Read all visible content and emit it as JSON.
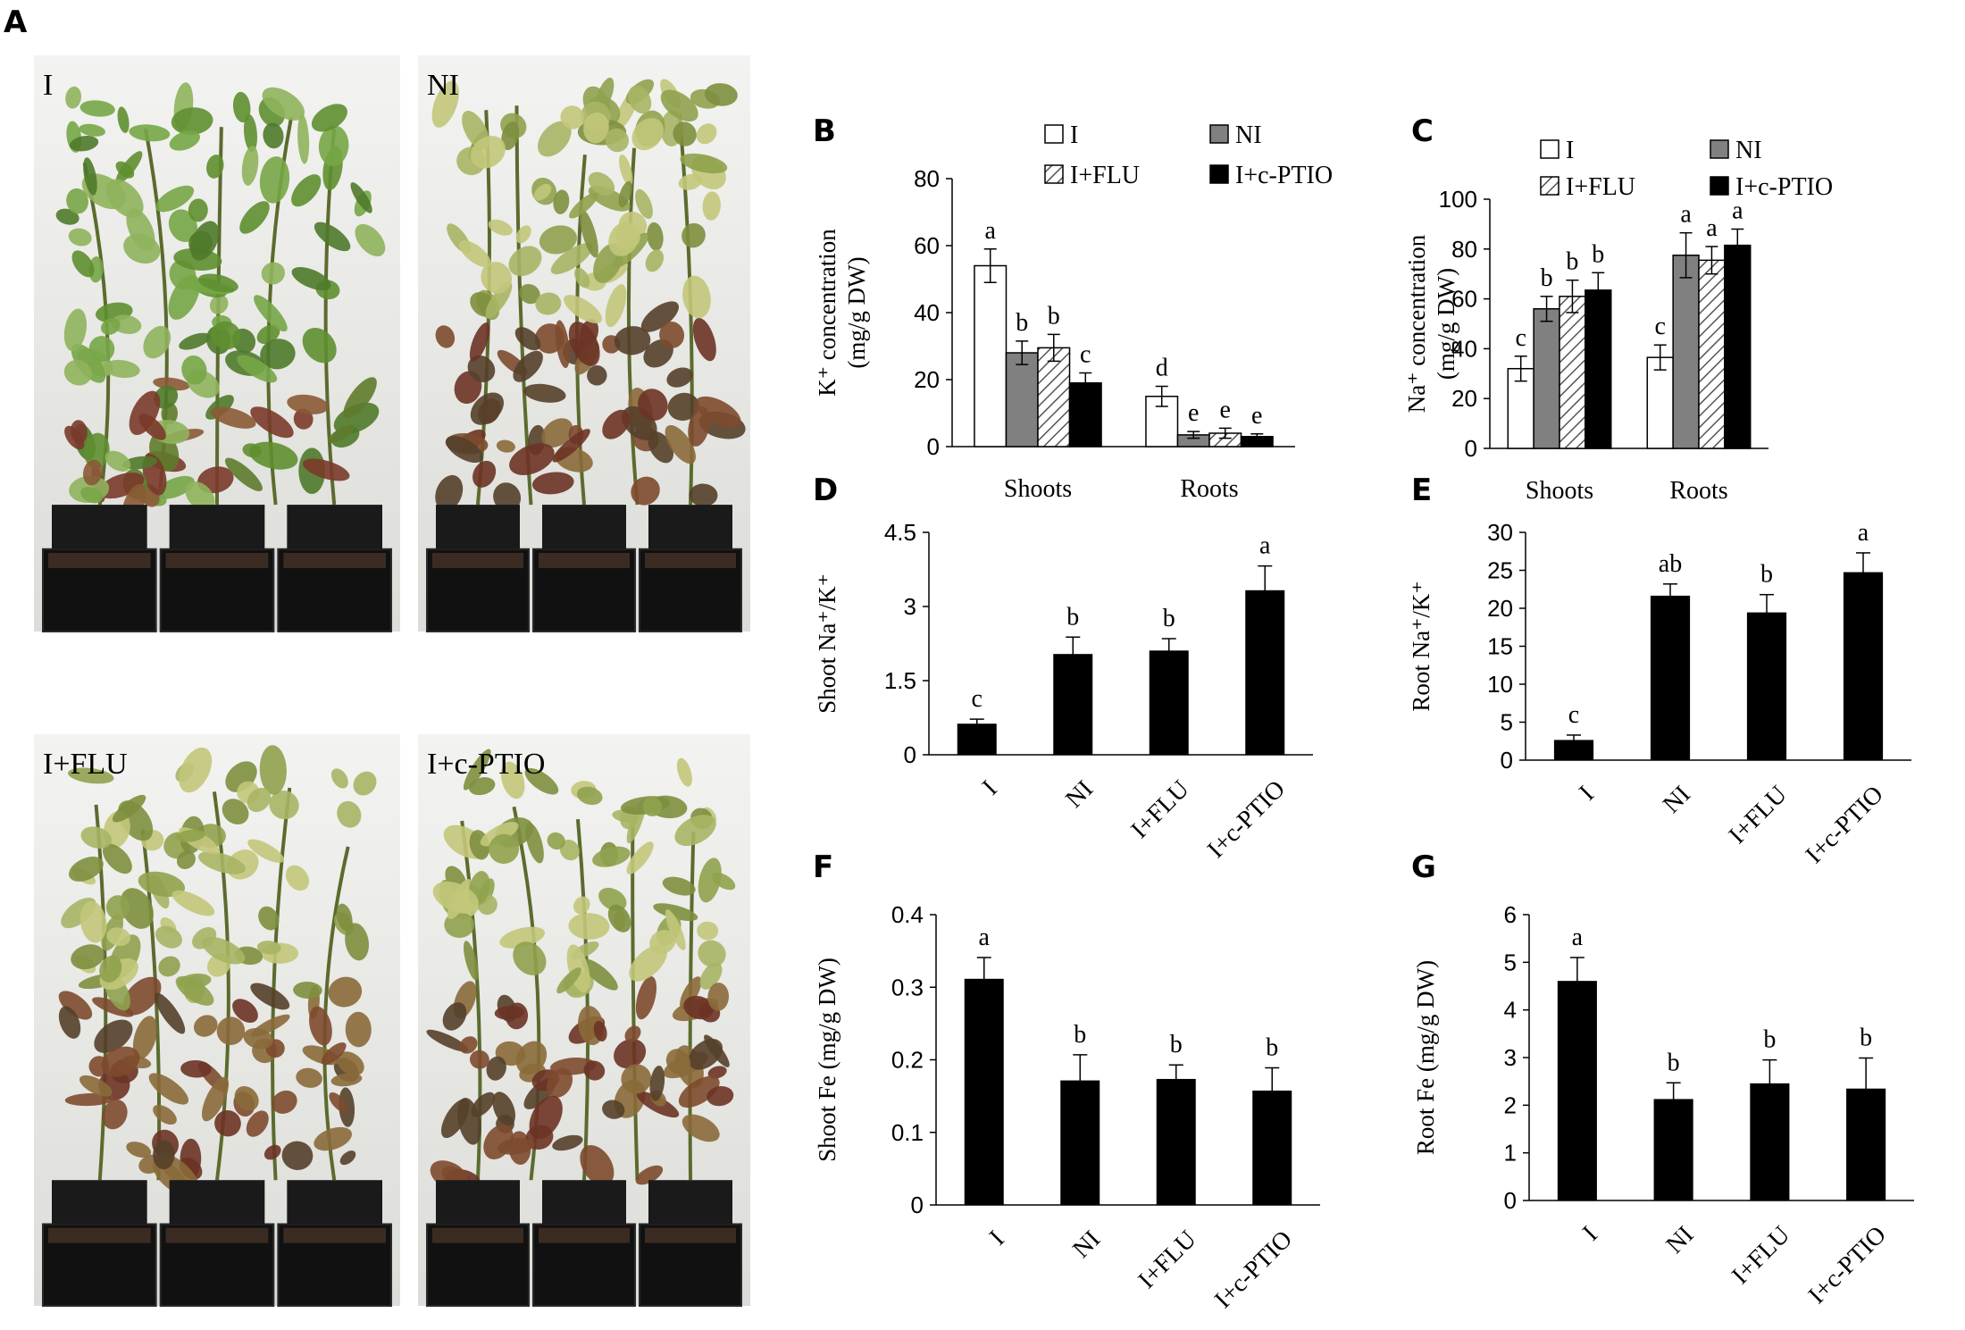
{
  "panel_letters": {
    "A": "A",
    "B": "B",
    "C": "C",
    "D": "D",
    "E": "E",
    "F": "F",
    "G": "G"
  },
  "photos": [
    {
      "label": "I"
    },
    {
      "label": "NI"
    },
    {
      "label": "I+FLU"
    },
    {
      "label": "I+c-PTIO"
    }
  ],
  "colors": {
    "I": "#ffffff",
    "NI": "#808080",
    "I+FLU": "hatched",
    "I+c-PTIO": "#000000",
    "bar": "#000000"
  },
  "chart_data": [
    {
      "panel": "B",
      "type": "bar",
      "ylabel_lines": [
        "K⁺ concentration",
        "(mg/g DW)"
      ],
      "categories": [
        "Shoots",
        "Roots"
      ],
      "legend": [
        "I",
        "NI",
        "I+FLU",
        "I+c-PTIO"
      ],
      "legend_placement": "top",
      "ylim": [
        0,
        80
      ],
      "yticks": [
        "0",
        "20",
        "40",
        "60",
        "80"
      ],
      "series": [
        {
          "name": "I",
          "values": [
            54,
            15
          ],
          "errors": [
            5,
            3
          ],
          "letters": [
            "a",
            "d"
          ]
        },
        {
          "name": "NI",
          "values": [
            28,
            3.5
          ],
          "errors": [
            3.5,
            1
          ],
          "letters": [
            "b",
            "e"
          ]
        },
        {
          "name": "I+FLU",
          "values": [
            29.5,
            4
          ],
          "errors": [
            4,
            1.5
          ],
          "letters": [
            "b",
            "e"
          ]
        },
        {
          "name": "I+c-PTIO",
          "values": [
            19,
            3
          ],
          "errors": [
            3,
            0.8
          ],
          "letters": [
            "c",
            "e"
          ]
        }
      ]
    },
    {
      "panel": "C",
      "type": "bar",
      "ylabel_lines": [
        "Na⁺ concentration",
        "(mg/g DW)"
      ],
      "categories": [
        "Shoots",
        "Roots"
      ],
      "legend": [
        "I",
        "NI",
        "I+FLU",
        "I+c-PTIO"
      ],
      "legend_placement": "top",
      "ylim": [
        0,
        100
      ],
      "yticks": [
        "0",
        "20",
        "40",
        "60",
        "80",
        "100"
      ],
      "series": [
        {
          "name": "I",
          "values": [
            32,
            36.5
          ],
          "errors": [
            5,
            5
          ],
          "letters": [
            "c",
            "c"
          ]
        },
        {
          "name": "NI",
          "values": [
            56,
            77.5
          ],
          "errors": [
            5,
            9
          ],
          "letters": [
            "b",
            "a"
          ]
        },
        {
          "name": "I+FLU",
          "values": [
            61,
            75.5
          ],
          "errors": [
            6.5,
            5.5
          ],
          "letters": [
            "b",
            "a"
          ]
        },
        {
          "name": "I+c-PTIO",
          "values": [
            63.5,
            81.5
          ],
          "errors": [
            7,
            6.5
          ],
          "letters": [
            "b",
            "a"
          ]
        }
      ]
    },
    {
      "panel": "D",
      "type": "bar",
      "ylabel": "Shoot Na⁺/K⁺",
      "categories": [
        "I",
        "NI",
        "I+FLU",
        "I+c-PTIO"
      ],
      "ylim": [
        0,
        4.5
      ],
      "yticks": [
        "0",
        "1.5",
        "3",
        "4.5"
      ],
      "values": [
        0.62,
        2.03,
        2.1,
        3.32
      ],
      "errors": [
        0.1,
        0.35,
        0.25,
        0.5
      ],
      "letters": [
        "c",
        "b",
        "b",
        "a"
      ]
    },
    {
      "panel": "E",
      "type": "bar",
      "ylabel": "Root Na⁺/K⁺",
      "categories": [
        "I",
        "NI",
        "I+FLU",
        "I+c-PTIO"
      ],
      "ylim": [
        0,
        30
      ],
      "yticks": [
        "0",
        "5",
        "10",
        "15",
        "20",
        "25",
        "30"
      ],
      "values": [
        2.6,
        21.6,
        19.4,
        24.7
      ],
      "errors": [
        0.7,
        1.6,
        2.4,
        2.6
      ],
      "letters": [
        "c",
        "ab",
        "b",
        "a"
      ]
    },
    {
      "panel": "F",
      "type": "bar",
      "ylabel": "Shoot Fe (mg/g DW)",
      "categories": [
        "I",
        "NI",
        "I+FLU",
        "I+c-PTIO"
      ],
      "ylim": [
        0,
        0.4
      ],
      "yticks": [
        "0",
        "0.1",
        "0.2",
        "0.3",
        "0.4"
      ],
      "values": [
        0.311,
        0.171,
        0.173,
        0.157
      ],
      "errors": [
        0.03,
        0.036,
        0.02,
        0.032
      ],
      "letters": [
        "a",
        "b",
        "b",
        "b"
      ]
    },
    {
      "panel": "G",
      "type": "bar",
      "ylabel": "Root Fe (mg/g DW)",
      "categories": [
        "I",
        "NI",
        "I+FLU",
        "I+c-PTIO"
      ],
      "ylim": [
        0,
        6
      ],
      "yticks": [
        "0",
        "1",
        "2",
        "3",
        "4",
        "5",
        "6"
      ],
      "values": [
        4.6,
        2.12,
        2.45,
        2.34
      ],
      "errors": [
        0.5,
        0.35,
        0.5,
        0.65
      ],
      "letters": [
        "a",
        "b",
        "b",
        "b"
      ]
    }
  ]
}
